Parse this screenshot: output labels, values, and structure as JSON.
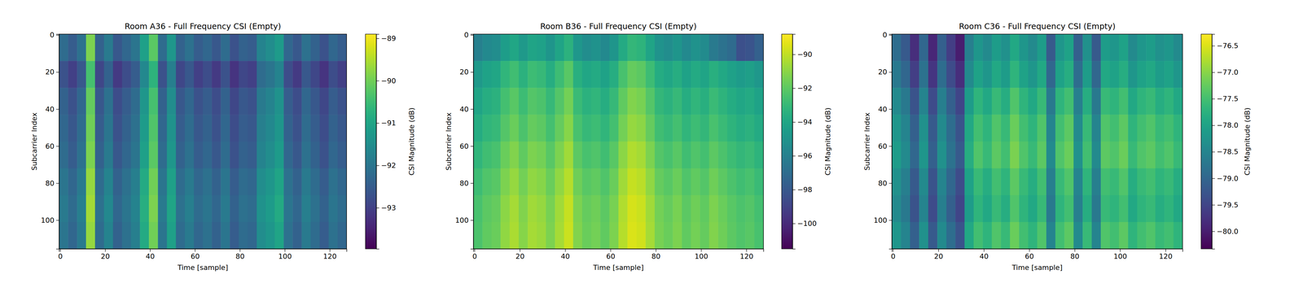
{
  "chart_data": [
    {
      "type": "heatmap",
      "title": "Room A36 - Full Frequency CSI (Empty)",
      "x_label": "Time [sample]",
      "y_label": "Subcarrier Index",
      "xlim": [
        -0.5,
        127.5
      ],
      "ylim": [
        115.5,
        -0.5
      ],
      "xticks": [
        0,
        20,
        40,
        60,
        80,
        100,
        120
      ],
      "yticks": [
        0,
        20,
        40,
        60,
        80,
        100
      ],
      "x_bins": [
        -0.5,
        3.5,
        7.5,
        11.5,
        15.5,
        19.5,
        23.5,
        27.5,
        31.5,
        35.5,
        39.5,
        43.5,
        47.5,
        51.5,
        55.5,
        59.5,
        63.5,
        67.5,
        71.5,
        75.5,
        79.5,
        83.5,
        87.5,
        91.5,
        95.5,
        99.5,
        103.5,
        107.5,
        111.5,
        115.5,
        119.5,
        123.5,
        127.5
      ],
      "y_bins": [
        -0.5,
        14,
        28.5,
        43,
        57.5,
        72,
        86.5,
        101,
        115.5
      ],
      "cells": [
        [
          -92.2,
          -92.5,
          -92.1,
          -89.9,
          -92.4,
          -91.9,
          -92.6,
          -92.3,
          -92.0,
          -91.1,
          -90.2,
          -92.2,
          -91.3,
          -92.4,
          -92.1,
          -92.5,
          -92.3,
          -92.6,
          -92.2,
          -92.7,
          -92.4,
          -92.5,
          -91.7,
          -91.5,
          -91.2,
          -92.3,
          -92.6,
          -92.1,
          -92.4,
          -92.7,
          -92.3,
          -92.5
        ],
        [
          -92.7,
          -93.0,
          -92.6,
          -90.4,
          -92.9,
          -92.4,
          -93.1,
          -92.8,
          -92.5,
          -91.6,
          -90.7,
          -92.7,
          -91.8,
          -92.9,
          -92.6,
          -93.0,
          -92.8,
          -93.1,
          -92.7,
          -93.2,
          -92.9,
          -93.0,
          -92.2,
          -92.0,
          -91.7,
          -92.8,
          -93.1,
          -92.6,
          -92.9,
          -93.2,
          -92.8,
          -93.0
        ],
        [
          -92.4,
          -92.7,
          -92.3,
          -90.1,
          -92.6,
          -92.1,
          -92.8,
          -92.5,
          -92.2,
          -91.3,
          -90.4,
          -92.4,
          -91.5,
          -92.6,
          -92.3,
          -92.7,
          -92.5,
          -92.8,
          -92.4,
          -92.9,
          -92.6,
          -92.7,
          -91.9,
          -91.7,
          -91.4,
          -92.5,
          -92.8,
          -92.3,
          -92.6,
          -92.9,
          -92.5,
          -92.7
        ],
        [
          -92.3,
          -92.6,
          -92.2,
          -90.0,
          -92.5,
          -92.0,
          -92.7,
          -92.4,
          -92.1,
          -91.2,
          -90.3,
          -92.3,
          -91.4,
          -92.5,
          -92.2,
          -92.6,
          -92.4,
          -92.7,
          -92.3,
          -92.8,
          -92.5,
          -92.6,
          -91.8,
          -91.6,
          -91.3,
          -92.4,
          -92.7,
          -92.2,
          -92.5,
          -92.8,
          -92.4,
          -92.6
        ],
        [
          -92.2,
          -92.5,
          -92.1,
          -89.9,
          -92.4,
          -91.9,
          -92.6,
          -92.3,
          -92.0,
          -91.1,
          -90.2,
          -92.2,
          -91.3,
          -92.4,
          -92.1,
          -92.5,
          -92.3,
          -92.6,
          -92.2,
          -92.7,
          -92.4,
          -92.5,
          -91.7,
          -91.5,
          -91.2,
          -92.3,
          -92.6,
          -92.1,
          -92.4,
          -92.7,
          -92.3,
          -92.5
        ],
        [
          -92.0,
          -92.3,
          -91.9,
          -89.7,
          -92.2,
          -91.7,
          -92.4,
          -92.1,
          -91.8,
          -90.9,
          -90.0,
          -92.0,
          -91.1,
          -92.2,
          -91.9,
          -92.3,
          -92.1,
          -92.4,
          -92.0,
          -92.5,
          -92.2,
          -92.3,
          -91.5,
          -91.3,
          -91.0,
          -92.1,
          -92.4,
          -91.9,
          -92.2,
          -92.5,
          -92.1,
          -92.3
        ],
        [
          -91.9,
          -92.2,
          -91.8,
          -89.6,
          -92.1,
          -91.6,
          -92.3,
          -92.0,
          -91.7,
          -90.8,
          -89.9,
          -91.9,
          -91.0,
          -92.1,
          -91.8,
          -92.2,
          -92.0,
          -92.3,
          -91.9,
          -92.4,
          -92.1,
          -92.2,
          -91.4,
          -91.2,
          -90.9,
          -92.0,
          -92.3,
          -91.8,
          -92.1,
          -92.4,
          -92.0,
          -92.2
        ],
        [
          -92.0,
          -92.3,
          -91.9,
          -89.7,
          -92.2,
          -91.7,
          -92.4,
          -92.1,
          -91.8,
          -90.9,
          -90.0,
          -92.0,
          -91.1,
          -92.2,
          -91.9,
          -92.3,
          -92.1,
          -92.4,
          -92.0,
          -92.5,
          -92.2,
          -92.3,
          -91.5,
          -91.3,
          -91.0,
          -92.1,
          -92.4,
          -91.9,
          -92.2,
          -92.5,
          -92.1,
          -92.3
        ]
      ],
      "colorbar_label": "CSI Magnitude (dB)",
      "color_range": [
        -93.97,
        -88.9
      ],
      "color_ticks": [
        {
          "value": -93,
          "label": "−93"
        },
        {
          "value": -92,
          "label": "−92"
        },
        {
          "value": -91,
          "label": "−91"
        },
        {
          "value": -90,
          "label": "−90"
        },
        {
          "value": -89,
          "label": "−89"
        }
      ]
    },
    {
      "type": "heatmap",
      "title": "Room B36 - Full Frequency CSI (Empty)",
      "x_label": "Time [sample]",
      "y_label": "Subcarrier Index",
      "xlim": [
        -0.5,
        127.5
      ],
      "ylim": [
        115.5,
        -0.5
      ],
      "xticks": [
        0,
        20,
        40,
        60,
        80,
        100,
        120
      ],
      "yticks": [
        0,
        20,
        40,
        60,
        80,
        100
      ],
      "x_bins": [
        -0.5,
        3.5,
        7.5,
        11.5,
        15.5,
        19.5,
        23.5,
        27.5,
        31.5,
        35.5,
        39.5,
        43.5,
        47.5,
        51.5,
        55.5,
        59.5,
        63.5,
        67.5,
        71.5,
        75.5,
        79.5,
        83.5,
        87.5,
        91.5,
        95.5,
        99.5,
        103.5,
        107.5,
        111.5,
        115.5,
        119.5,
        123.5,
        127.5
      ],
      "y_bins": [
        -0.5,
        14,
        28.5,
        43,
        57.5,
        72,
        86.5,
        101,
        115.5
      ],
      "cells": [
        [
          -96.0,
          -95.5,
          -95.3,
          -94.5,
          -94.0,
          -94.7,
          -94.1,
          -94.3,
          -94.9,
          -94.1,
          -93.4,
          -94.8,
          -95.3,
          -95.1,
          -95.5,
          -94.9,
          -93.8,
          -93.1,
          -93.3,
          -94.1,
          -95.0,
          -95.3,
          -94.9,
          -95.5,
          -95.1,
          -95.4,
          -96.3,
          -96.7,
          -97.1,
          -98.4,
          -98.2,
          -97.6
        ],
        [
          -94.7,
          -94.2,
          -94.0,
          -93.2,
          -92.7,
          -93.4,
          -92.8,
          -93.0,
          -93.6,
          -92.8,
          -92.1,
          -93.5,
          -94.0,
          -93.8,
          -94.2,
          -93.6,
          -92.5,
          -91.8,
          -92.0,
          -92.8,
          -93.7,
          -94.0,
          -93.6,
          -94.2,
          -93.8,
          -94.1,
          -93.5,
          -93.9,
          -94.3,
          -94.6,
          -94.4,
          -94.8
        ],
        [
          -94.1,
          -93.6,
          -93.4,
          -92.6,
          -92.1,
          -92.8,
          -92.2,
          -92.4,
          -93.0,
          -92.2,
          -91.5,
          -92.9,
          -93.4,
          -93.2,
          -93.6,
          -93.0,
          -91.9,
          -91.2,
          -91.4,
          -92.2,
          -93.1,
          -93.4,
          -93.0,
          -93.6,
          -93.2,
          -93.5,
          -92.9,
          -93.3,
          -93.7,
          -94.0,
          -93.8,
          -94.2
        ],
        [
          -93.7,
          -93.2,
          -93.0,
          -92.2,
          -91.7,
          -92.4,
          -91.8,
          -92.0,
          -92.6,
          -91.8,
          -91.1,
          -92.5,
          -93.0,
          -92.8,
          -93.2,
          -92.6,
          -91.5,
          -90.8,
          -91.0,
          -91.8,
          -92.7,
          -93.0,
          -92.6,
          -93.2,
          -92.8,
          -93.1,
          -92.5,
          -92.9,
          -93.3,
          -93.6,
          -93.4,
          -93.8
        ],
        [
          -93.2,
          -92.7,
          -92.5,
          -91.7,
          -91.2,
          -91.9,
          -91.3,
          -91.5,
          -92.1,
          -91.3,
          -90.6,
          -92.0,
          -92.5,
          -92.3,
          -92.7,
          -92.1,
          -91.0,
          -90.3,
          -90.5,
          -91.3,
          -92.2,
          -92.5,
          -92.1,
          -92.7,
          -92.3,
          -92.6,
          -92.0,
          -92.4,
          -92.8,
          -93.1,
          -92.9,
          -93.3
        ],
        [
          -92.8,
          -92.3,
          -92.1,
          -91.3,
          -90.8,
          -91.5,
          -90.9,
          -91.1,
          -91.7,
          -90.9,
          -90.2,
          -91.6,
          -92.1,
          -91.9,
          -92.3,
          -91.7,
          -90.6,
          -89.9,
          -90.1,
          -90.9,
          -91.8,
          -92.1,
          -91.7,
          -92.3,
          -91.9,
          -92.2,
          -91.6,
          -92.0,
          -92.4,
          -92.7,
          -92.5,
          -92.9
        ],
        [
          -92.5,
          -92.0,
          -91.8,
          -91.0,
          -90.5,
          -91.2,
          -90.6,
          -90.8,
          -91.4,
          -90.6,
          -89.9,
          -91.3,
          -91.8,
          -91.6,
          -92.0,
          -91.4,
          -90.3,
          -89.6,
          -89.8,
          -90.6,
          -91.5,
          -91.8,
          -91.4,
          -92.0,
          -91.6,
          -91.9,
          -91.3,
          -91.7,
          -92.1,
          -92.4,
          -92.2,
          -92.6
        ],
        [
          -92.4,
          -91.9,
          -91.7,
          -90.9,
          -90.4,
          -91.1,
          -90.5,
          -90.7,
          -91.3,
          -90.5,
          -89.8,
          -91.2,
          -91.7,
          -91.5,
          -91.9,
          -91.3,
          -90.2,
          -89.5,
          -89.7,
          -90.5,
          -91.4,
          -91.7,
          -91.3,
          -91.9,
          -91.5,
          -91.8,
          -91.2,
          -91.6,
          -92.0,
          -92.3,
          -92.1,
          -92.5
        ]
      ],
      "colorbar_label": "CSI Magnitude (dB)",
      "color_range": [
        -101.5,
        -88.8
      ],
      "color_ticks": [
        {
          "value": -100,
          "label": "−100"
        },
        {
          "value": -98,
          "label": "−98"
        },
        {
          "value": -96,
          "label": "−96"
        },
        {
          "value": -94,
          "label": "−94"
        },
        {
          "value": -92,
          "label": "−92"
        },
        {
          "value": -90,
          "label": "−90"
        }
      ]
    },
    {
      "type": "heatmap",
      "title": "Room C36 - Full Frequency CSI (Empty)",
      "x_label": "Time [sample]",
      "y_label": "Subcarrier Index",
      "xlim": [
        -0.5,
        127.5
      ],
      "ylim": [
        115.5,
        -0.5
      ],
      "xticks": [
        0,
        20,
        40,
        60,
        80,
        100,
        120
      ],
      "yticks": [
        0,
        20,
        40,
        60,
        80,
        100
      ],
      "x_bins": [
        -0.5,
        3.5,
        7.5,
        11.5,
        15.5,
        19.5,
        23.5,
        27.5,
        31.5,
        35.5,
        39.5,
        43.5,
        47.5,
        51.5,
        55.5,
        59.5,
        63.5,
        67.5,
        71.5,
        75.5,
        79.5,
        83.5,
        87.5,
        91.5,
        95.5,
        99.5,
        103.5,
        107.5,
        111.5,
        115.5,
        119.5,
        123.5,
        127.5
      ],
      "y_bins": [
        -0.5,
        14,
        28.5,
        43,
        57.5,
        72,
        86.5,
        101,
        115.5
      ],
      "cells": [
        [
          -78.9,
          -79.2,
          -79.8,
          -79.0,
          -79.9,
          -79.1,
          -79.6,
          -80.0,
          -78.6,
          -78.2,
          -78.4,
          -78.1,
          -78.3,
          -77.9,
          -78.2,
          -78.4,
          -78.1,
          -79.2,
          -78.2,
          -78.0,
          -79.1,
          -78.3,
          -79.2,
          -78.1,
          -78.2,
          -78.0,
          -78.4,
          -78.2,
          -78.1,
          -78.3,
          -78.2,
          -78.4
        ],
        [
          -78.7,
          -79.0,
          -79.6,
          -78.8,
          -79.7,
          -78.9,
          -79.4,
          -79.8,
          -78.4,
          -78.0,
          -78.2,
          -77.9,
          -78.1,
          -77.7,
          -78.0,
          -78.2,
          -77.9,
          -79.0,
          -78.0,
          -77.8,
          -78.9,
          -78.1,
          -79.0,
          -77.9,
          -78.0,
          -77.8,
          -78.2,
          -78.0,
          -77.9,
          -78.1,
          -78.0,
          -78.2
        ],
        [
          -78.4,
          -78.7,
          -79.3,
          -78.5,
          -79.4,
          -78.6,
          -79.1,
          -79.5,
          -78.1,
          -77.7,
          -77.9,
          -77.6,
          -77.8,
          -77.4,
          -77.7,
          -77.9,
          -77.6,
          -78.7,
          -77.7,
          -77.5,
          -78.6,
          -77.8,
          -78.7,
          -77.6,
          -77.7,
          -77.5,
          -77.9,
          -77.7,
          -77.6,
          -77.8,
          -77.7,
          -77.9
        ],
        [
          -78.2,
          -78.5,
          -79.1,
          -78.3,
          -79.2,
          -78.4,
          -78.9,
          -79.3,
          -77.9,
          -77.5,
          -77.7,
          -77.4,
          -77.6,
          -77.2,
          -77.5,
          -77.7,
          -77.4,
          -78.5,
          -77.5,
          -77.3,
          -78.4,
          -77.6,
          -78.5,
          -77.4,
          -77.5,
          -77.3,
          -77.7,
          -77.5,
          -77.4,
          -77.6,
          -77.5,
          -77.7
        ],
        [
          -78.1,
          -78.4,
          -79.0,
          -78.2,
          -79.1,
          -78.3,
          -78.8,
          -79.2,
          -77.8,
          -77.4,
          -77.6,
          -77.3,
          -77.5,
          -77.1,
          -77.4,
          -77.6,
          -77.3,
          -78.4,
          -77.4,
          -77.2,
          -78.3,
          -77.5,
          -78.4,
          -77.3,
          -77.4,
          -77.2,
          -77.6,
          -77.4,
          -77.3,
          -77.5,
          -77.4,
          -77.6
        ],
        [
          -78.3,
          -78.6,
          -79.2,
          -78.4,
          -79.3,
          -78.5,
          -79.0,
          -79.4,
          -78.0,
          -77.6,
          -77.8,
          -77.5,
          -77.7,
          -77.3,
          -77.6,
          -77.8,
          -77.5,
          -78.6,
          -77.6,
          -77.4,
          -78.5,
          -77.7,
          -78.6,
          -77.5,
          -77.6,
          -77.4,
          -77.8,
          -77.6,
          -77.5,
          -77.7,
          -77.6,
          -77.8
        ],
        [
          -78.4,
          -78.7,
          -79.3,
          -78.5,
          -79.4,
          -78.6,
          -79.1,
          -79.5,
          -78.1,
          -77.7,
          -77.9,
          -77.6,
          -77.8,
          -77.4,
          -77.7,
          -77.9,
          -77.6,
          -78.7,
          -77.7,
          -77.5,
          -78.6,
          -77.8,
          -78.7,
          -77.6,
          -77.7,
          -77.5,
          -77.9,
          -77.7,
          -77.6,
          -77.8,
          -77.7,
          -77.9
        ],
        [
          -78.2,
          -78.5,
          -79.1,
          -78.3,
          -79.2,
          -78.4,
          -78.9,
          -79.3,
          -77.9,
          -77.5,
          -77.7,
          -77.4,
          -77.6,
          -77.2,
          -77.5,
          -77.7,
          -77.4,
          -78.5,
          -77.5,
          -77.3,
          -78.4,
          -77.6,
          -78.5,
          -77.4,
          -77.5,
          -77.3,
          -77.7,
          -77.5,
          -77.4,
          -77.6,
          -77.5,
          -77.7
        ]
      ],
      "colorbar_label": "CSI Magnitude (dB)",
      "color_range": [
        -80.33,
        -76.28
      ],
      "color_ticks": [
        {
          "value": -80,
          "label": "−80.0"
        },
        {
          "value": -79.5,
          "label": "−79.5"
        },
        {
          "value": -79,
          "label": "−79.0"
        },
        {
          "value": -78.5,
          "label": "−78.5"
        },
        {
          "value": -78,
          "label": "−78.0"
        },
        {
          "value": -77.5,
          "label": "−77.5"
        },
        {
          "value": -77,
          "label": "−77.0"
        },
        {
          "value": -76.5,
          "label": "−76.5"
        }
      ]
    }
  ]
}
